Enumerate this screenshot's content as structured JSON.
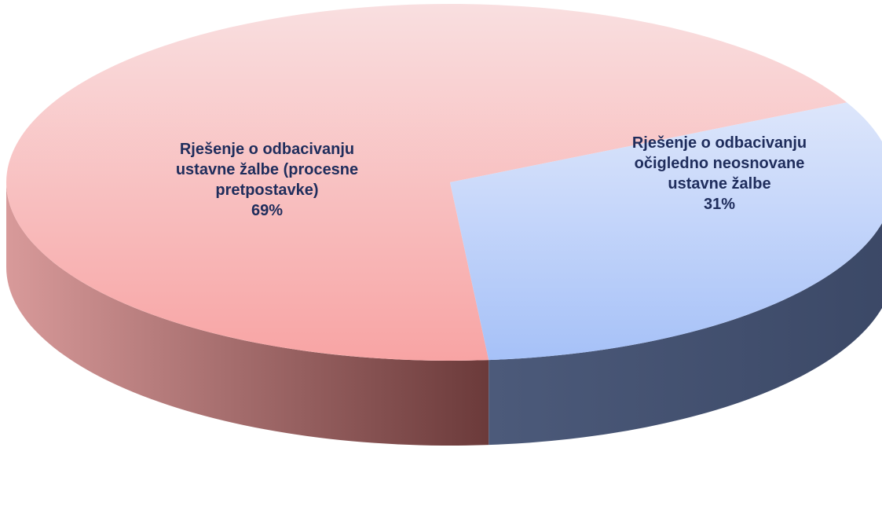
{
  "chart_data": {
    "type": "pie",
    "style": "3d",
    "title": "",
    "slices": [
      {
        "label_lines": [
          "Rješenje o odbacivanju",
          "ustavne žalbe (procesne",
          "pretpostavke)"
        ],
        "value": 69,
        "percent_label": "69%",
        "top_color_light": "#f9dfe0",
        "top_color_dark": "#f8a4a4",
        "side_color_light": "#d89a9a",
        "side_color_dark": "#6b3a3a"
      },
      {
        "label_lines": [
          "Rješenje o odbacivanju",
          "očigledno neosnovane",
          "ustavne žalbe"
        ],
        "value": 31,
        "percent_label": "31%",
        "top_color_light": "#dde6fb",
        "top_color_dark": "#a6c1f8",
        "side_color_light": "#4c5a7a",
        "side_color_dark": "#3b4866"
      }
    ],
    "label_color": "#1f2d5c",
    "legend": "none"
  }
}
